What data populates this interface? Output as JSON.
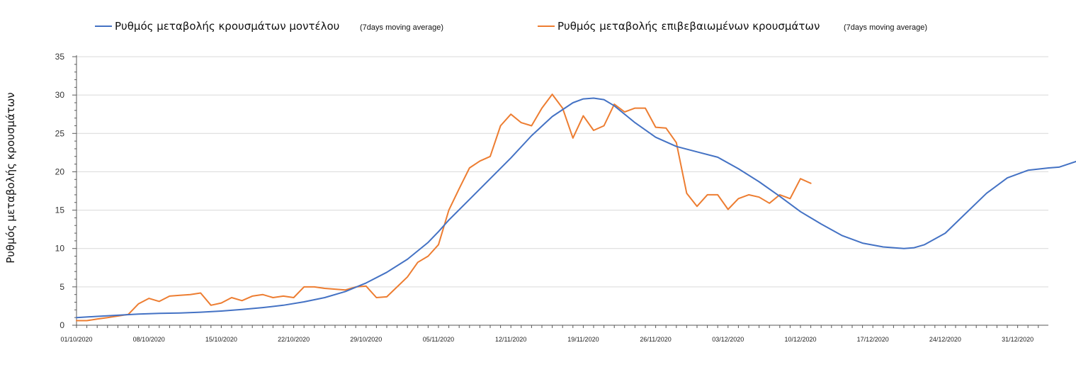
{
  "chart_data": {
    "type": "line",
    "title": "",
    "ylabel": "Ρυθμός μεταβολής κρουσμάτων",
    "xlabel": "",
    "ylim": [
      0,
      35
    ],
    "yticks": [
      0,
      5,
      10,
      15,
      20,
      25,
      30,
      35
    ],
    "grid": true,
    "legend_position": "top",
    "x_start_date": "01/10/2020",
    "x_end_date": "04/01/2021",
    "x_day_count": 95,
    "x_tick_labels": [
      "01/10/2020",
      "08/10/2020",
      "15/10/2020",
      "22/10/2020",
      "29/10/2020",
      "05/11/2020",
      "12/11/2020",
      "19/11/2020",
      "26/11/2020",
      "03/12/2020",
      "10/12/2020",
      "17/12/2020",
      "24/12/2020",
      "31/12/2020"
    ],
    "x_tick_days": [
      0,
      7,
      14,
      21,
      28,
      35,
      42,
      49,
      56,
      63,
      70,
      77,
      84,
      91
    ],
    "series": [
      {
        "name": "Ρυθμός μεταβολής κρουσμάτων μοντέλου",
        "note": "(7days moving average)",
        "color": "#4472c4",
        "points": [
          [
            0,
            1.0
          ],
          [
            2,
            1.15
          ],
          [
            4,
            1.3
          ],
          [
            6,
            1.45
          ],
          [
            8,
            1.55
          ],
          [
            10,
            1.6
          ],
          [
            12,
            1.7
          ],
          [
            14,
            1.85
          ],
          [
            16,
            2.05
          ],
          [
            18,
            2.3
          ],
          [
            20,
            2.6
          ],
          [
            22,
            3.05
          ],
          [
            24,
            3.6
          ],
          [
            26,
            4.4
          ],
          [
            28,
            5.5
          ],
          [
            30,
            6.9
          ],
          [
            32,
            8.6
          ],
          [
            34,
            10.8
          ],
          [
            35,
            12.2
          ],
          [
            36,
            13.7
          ],
          [
            38,
            16.4
          ],
          [
            40,
            19.1
          ],
          [
            42,
            21.8
          ],
          [
            44,
            24.7
          ],
          [
            46,
            27.2
          ],
          [
            48,
            29.0
          ],
          [
            49,
            29.5
          ],
          [
            50,
            29.6
          ],
          [
            51,
            29.4
          ],
          [
            52,
            28.6
          ],
          [
            54,
            26.4
          ],
          [
            56,
            24.5
          ],
          [
            58,
            23.3
          ],
          [
            60,
            22.6
          ],
          [
            62,
            21.9
          ],
          [
            64,
            20.4
          ],
          [
            66,
            18.7
          ],
          [
            68,
            16.8
          ],
          [
            70,
            14.8
          ],
          [
            72,
            13.2
          ],
          [
            74,
            11.7
          ],
          [
            76,
            10.7
          ],
          [
            78,
            10.2
          ],
          [
            80,
            10.0
          ],
          [
            81,
            10.1
          ],
          [
            82,
            10.5
          ],
          [
            84,
            12.0
          ],
          [
            86,
            14.6
          ],
          [
            88,
            17.2
          ],
          [
            90,
            19.2
          ],
          [
            92,
            20.2
          ],
          [
            94,
            20.5
          ],
          [
            95,
            20.6
          ],
          [
            97,
            21.5
          ]
        ]
      },
      {
        "name": "Ρυθμός μεταβολής επιβεβαιωμένων κρουσμάτων",
        "note": "(7days moving average)",
        "color": "#ed7d31",
        "points": [
          [
            0,
            0.6
          ],
          [
            1,
            0.6
          ],
          [
            2,
            0.8
          ],
          [
            3,
            1.0
          ],
          [
            4,
            1.2
          ],
          [
            5,
            1.4
          ],
          [
            6,
            2.8
          ],
          [
            7,
            3.5
          ],
          [
            8,
            3.1
          ],
          [
            9,
            3.8
          ],
          [
            10,
            3.9
          ],
          [
            11,
            4.0
          ],
          [
            12,
            4.2
          ],
          [
            13,
            2.6
          ],
          [
            14,
            2.9
          ],
          [
            15,
            3.6
          ],
          [
            16,
            3.2
          ],
          [
            17,
            3.8
          ],
          [
            18,
            4.0
          ],
          [
            19,
            3.6
          ],
          [
            20,
            3.8
          ],
          [
            21,
            3.6
          ],
          [
            22,
            5.0
          ],
          [
            23,
            5.0
          ],
          [
            24,
            4.8
          ],
          [
            25,
            4.7
          ],
          [
            26,
            4.6
          ],
          [
            27,
            5.0
          ],
          [
            28,
            5.1
          ],
          [
            29,
            3.6
          ],
          [
            30,
            3.7
          ],
          [
            31,
            5.0
          ],
          [
            32,
            6.3
          ],
          [
            33,
            8.2
          ],
          [
            34,
            9.0
          ],
          [
            35,
            10.5
          ],
          [
            36,
            15.0
          ],
          [
            37,
            17.8
          ],
          [
            38,
            20.5
          ],
          [
            39,
            21.4
          ],
          [
            40,
            22.0
          ],
          [
            41,
            26.0
          ],
          [
            42,
            27.5
          ],
          [
            43,
            26.4
          ],
          [
            44,
            26.0
          ],
          [
            45,
            28.3
          ],
          [
            46,
            30.1
          ],
          [
            47,
            28.3
          ],
          [
            48,
            24.4
          ],
          [
            49,
            27.3
          ],
          [
            50,
            25.4
          ],
          [
            51,
            26.0
          ],
          [
            52,
            28.8
          ],
          [
            53,
            27.8
          ],
          [
            54,
            28.3
          ],
          [
            55,
            28.3
          ],
          [
            56,
            25.8
          ],
          [
            57,
            25.7
          ],
          [
            58,
            23.8
          ],
          [
            59,
            17.2
          ],
          [
            60,
            15.5
          ],
          [
            61,
            17.0
          ],
          [
            62,
            17.0
          ],
          [
            63,
            15.1
          ],
          [
            64,
            16.5
          ],
          [
            65,
            17.0
          ],
          [
            66,
            16.7
          ],
          [
            67,
            15.9
          ],
          [
            68,
            17.0
          ],
          [
            69,
            16.5
          ],
          [
            70,
            19.1
          ],
          [
            71,
            18.5
          ]
        ]
      }
    ]
  }
}
